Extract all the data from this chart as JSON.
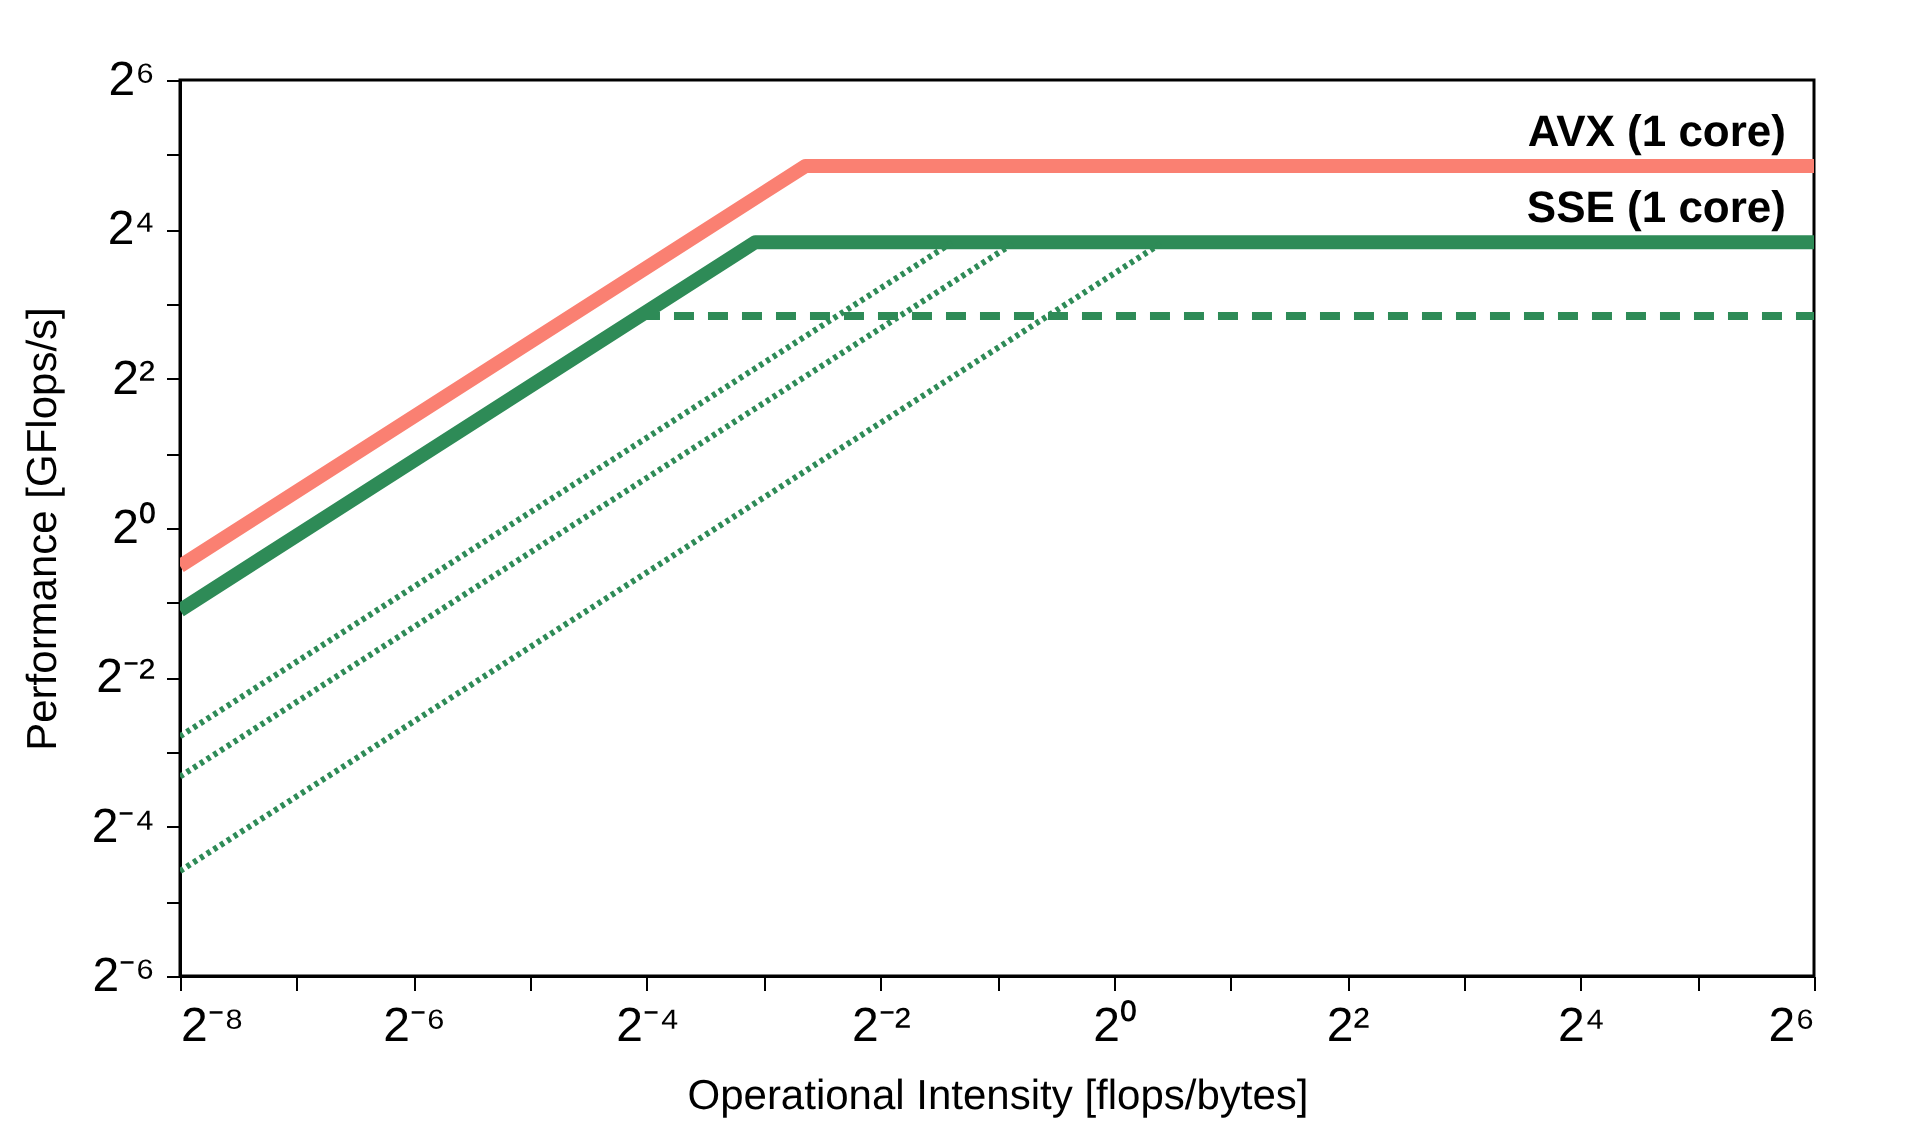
{
  "chart_data": {
    "type": "line",
    "xlabel": "Operational Intensity [flops/bytes]",
    "ylabel": "Performance [GFlops/s]",
    "log": "xy",
    "grid": false,
    "xlim": [
      0.00390625,
      64
    ],
    "ylim": [
      0.015625,
      64
    ],
    "xticks": [
      {
        "value": 0.00390625,
        "label": "2⁻⁸"
      },
      {
        "value": 0.0078125,
        "label": null
      },
      {
        "value": 0.015625,
        "label": "2⁻⁶"
      },
      {
        "value": 0.03125,
        "label": null
      },
      {
        "value": 0.0625,
        "label": "2⁻⁴"
      },
      {
        "value": 0.125,
        "label": null
      },
      {
        "value": 0.25,
        "label": "2⁻²"
      },
      {
        "value": 0.5,
        "label": null
      },
      {
        "value": 1,
        "label": "2⁰"
      },
      {
        "value": 2,
        "label": null
      },
      {
        "value": 4,
        "label": "2²"
      },
      {
        "value": 8,
        "label": null
      },
      {
        "value": 16,
        "label": "2⁴"
      },
      {
        "value": 32,
        "label": null
      },
      {
        "value": 64,
        "label": "2⁶"
      }
    ],
    "yticks": [
      {
        "value": 0.015625,
        "label": "2⁻⁶"
      },
      {
        "value": 0.03125,
        "label": null
      },
      {
        "value": 0.0625,
        "label": "2⁻⁴"
      },
      {
        "value": 0.125,
        "label": null
      },
      {
        "value": 0.25,
        "label": "2⁻²"
      },
      {
        "value": 0.5,
        "label": null
      },
      {
        "value": 1,
        "label": "2⁰"
      },
      {
        "value": 2,
        "label": null
      },
      {
        "value": 4,
        "label": "2²"
      },
      {
        "value": 8,
        "label": null
      },
      {
        "value": 16,
        "label": "2⁴"
      },
      {
        "value": 32,
        "label": null
      },
      {
        "value": 64,
        "label": "2⁶"
      }
    ],
    "series": [
      {
        "name": "AVX (1 core)",
        "color": "#fa8072",
        "line_style": "solid",
        "x": [
          0.00390625,
          0.1603,
          64
        ],
        "values": [
          0.702,
          28.8,
          28.8
        ]
      },
      {
        "name": "SSE (1 core)",
        "color": "#2e8b57",
        "line_style": "solid",
        "x": [
          0.00390625,
          0.119,
          64
        ],
        "values": [
          0.466,
          14.2,
          14.2
        ]
      },
      {
        "color": "#2e8b57",
        "line_style": "dashed",
        "x": [
          0.06,
          64
        ],
        "values": [
          7.16,
          7.16
        ]
      },
      {
        "color": "#2e8b57",
        "line_style": "dotted",
        "x": [
          0.00390625,
          0.384
        ],
        "values": [
          0.1446,
          14.2
        ]
      },
      {
        "color": "#2e8b57",
        "line_style": "dotted",
        "x": [
          0.00390625,
          0.557
        ],
        "values": [
          0.0995,
          14.2
        ]
      },
      {
        "color": "#2e8b57",
        "line_style": "dotted",
        "x": [
          0.00390625,
          1.34
        ],
        "values": [
          0.0414,
          14.2
        ]
      }
    ]
  }
}
